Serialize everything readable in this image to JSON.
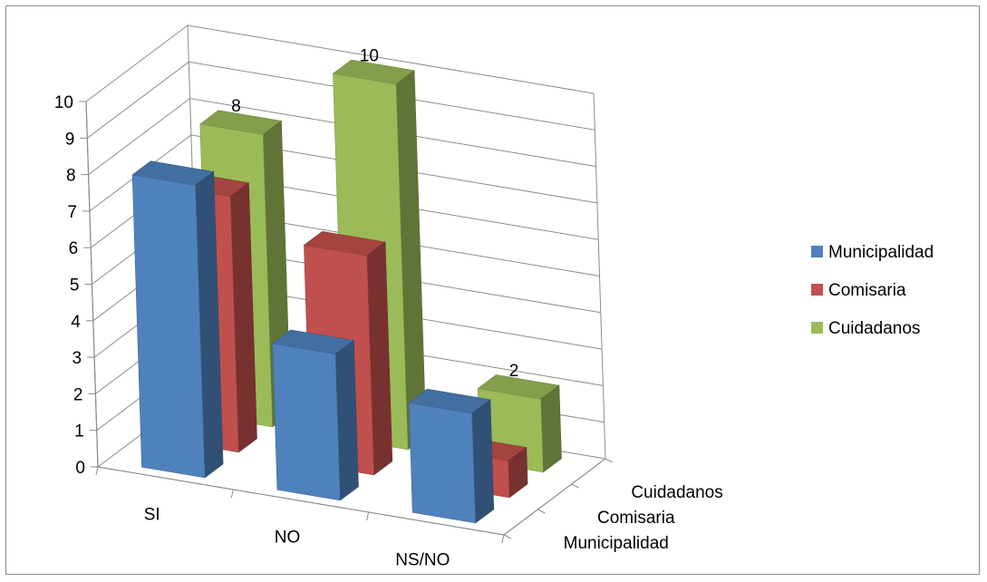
{
  "chart_data": {
    "type": "bar",
    "subtype": "3d-column",
    "categories": [
      "SI",
      "NO",
      "NS/NO"
    ],
    "series": [
      {
        "name": "Municipalidad",
        "values": [
          8,
          4,
          3
        ],
        "color": "#4f81bd"
      },
      {
        "name": "Comisaria",
        "values": [
          7,
          6,
          1
        ],
        "color": "#c0504d"
      },
      {
        "name": "Cuidadanos",
        "values": [
          8,
          10,
          2
        ],
        "color": "#9bbb59"
      }
    ],
    "data_labels": [
      {
        "series": 2,
        "category": 0,
        "text": "8"
      },
      {
        "series": 2,
        "category": 1,
        "text": "10"
      },
      {
        "series": 2,
        "category": 2,
        "text": "2"
      }
    ],
    "ylim": [
      0,
      10
    ],
    "yticks": [
      "0",
      "1",
      "2",
      "3",
      "4",
      "5",
      "6",
      "7",
      "8",
      "9",
      "10"
    ],
    "depth_labels": [
      "Municipalidad",
      "Comisaria",
      "Cuidadanos"
    ],
    "grid": true,
    "legend_position": "right"
  }
}
